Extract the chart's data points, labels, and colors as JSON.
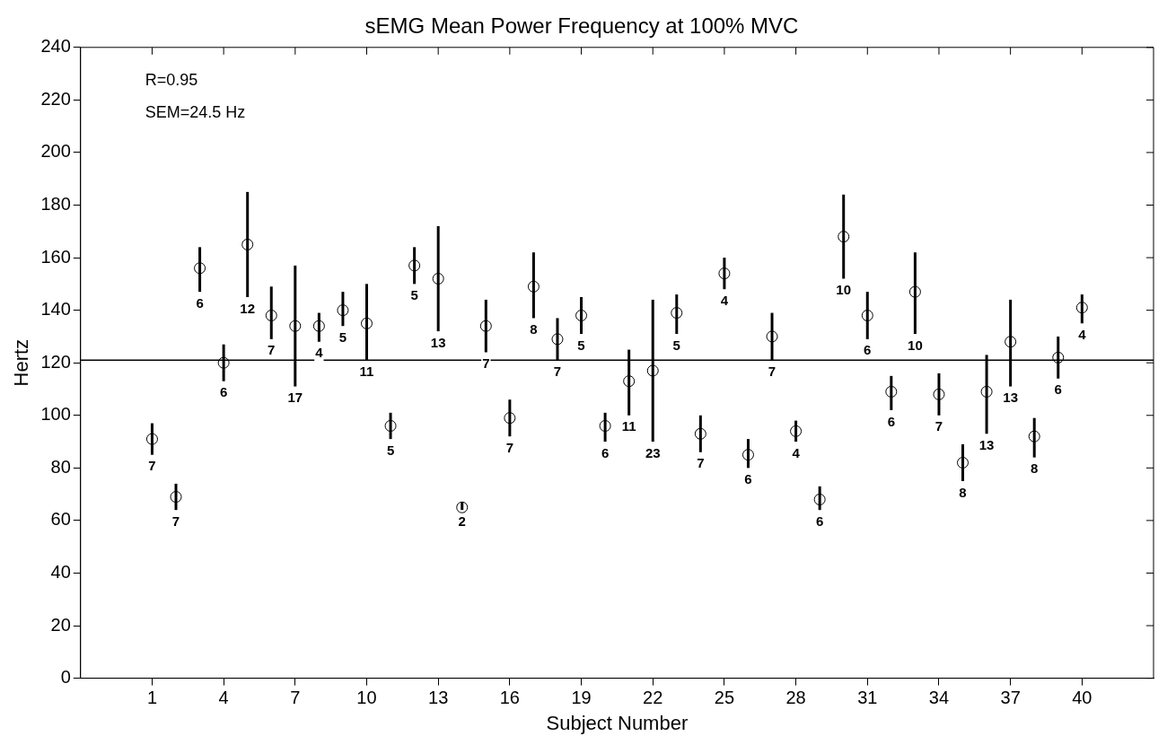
{
  "chart_data": {
    "type": "scatter",
    "title": "sEMG Mean Power Frequency at 100% MVC",
    "xlabel": "Subject Number",
    "ylabel": "Hertz",
    "x": [
      1,
      2,
      3,
      4,
      5,
      6,
      7,
      8,
      9,
      10,
      11,
      12,
      13,
      14,
      15,
      16,
      17,
      18,
      19,
      20,
      21,
      22,
      23,
      24,
      25,
      26,
      27,
      28,
      29,
      30,
      31,
      32,
      33,
      34,
      35,
      36,
      37,
      38,
      39,
      40
    ],
    "values": [
      91,
      69,
      156,
      120,
      165,
      138,
      134,
      134,
      140,
      135,
      96,
      157,
      152,
      65,
      134,
      99,
      149,
      129,
      138,
      96,
      113,
      117,
      139,
      93,
      154,
      85,
      130,
      94,
      68,
      168,
      138,
      109,
      147,
      108,
      82,
      109,
      128,
      92,
      122,
      141
    ],
    "errors": [
      [
        85,
        97
      ],
      [
        64,
        74
      ],
      [
        147,
        164
      ],
      [
        113,
        127
      ],
      [
        145,
        185
      ],
      [
        129,
        149
      ],
      [
        111,
        157
      ],
      [
        128,
        139
      ],
      [
        134,
        147
      ],
      [
        121,
        150
      ],
      [
        91,
        101
      ],
      [
        150,
        164
      ],
      [
        132,
        172
      ],
      [
        64,
        67
      ],
      [
        124,
        144
      ],
      [
        92,
        106
      ],
      [
        137,
        162
      ],
      [
        121,
        137
      ],
      [
        131,
        145
      ],
      [
        90,
        101
      ],
      [
        100,
        125
      ],
      [
        90,
        144
      ],
      [
        131,
        146
      ],
      [
        86,
        100
      ],
      [
        148,
        160
      ],
      [
        80,
        91
      ],
      [
        121,
        139
      ],
      [
        90,
        98
      ],
      [
        64,
        73
      ],
      [
        152,
        184
      ],
      [
        129,
        147
      ],
      [
        102,
        115
      ],
      [
        131,
        162
      ],
      [
        100,
        116
      ],
      [
        75,
        89
      ],
      [
        93,
        123
      ],
      [
        111,
        144
      ],
      [
        84,
        99
      ],
      [
        114,
        130
      ],
      [
        135,
        146
      ]
    ],
    "color": "#000000",
    "marker": "circle",
    "xlim": [
      -2,
      43
    ],
    "xticks": [
      1,
      4,
      7,
      10,
      13,
      16,
      19,
      22,
      25,
      28,
      31,
      34,
      37,
      40
    ],
    "ylim": [
      0,
      240
    ],
    "yticks": [
      0,
      20,
      40,
      60,
      80,
      100,
      120,
      140,
      160,
      180,
      200,
      220,
      240
    ],
    "ref_lines": [
      {
        "axis": "y",
        "value": 121,
        "color": "#000000"
      }
    ],
    "annotations": [
      "R=0.95",
      "SEM=24.5 Hz",
      {
        "text": "7",
        "x": 1,
        "y": 85
      },
      {
        "text": "7",
        "x": 2,
        "y": 64
      },
      {
        "text": "6",
        "x": 3,
        "y": 147
      },
      {
        "text": "6",
        "x": 4,
        "y": 113
      },
      {
        "text": "12",
        "x": 5,
        "y": 145
      },
      {
        "text": "7",
        "x": 6,
        "y": 129
      },
      {
        "text": "17",
        "x": 7,
        "y": 111
      },
      {
        "text": "4",
        "x": 8,
        "y": 128
      },
      {
        "text": "5",
        "x": 9,
        "y": 134
      },
      {
        "text": "11",
        "x": 10,
        "y": 121
      },
      {
        "text": "5",
        "x": 11,
        "y": 91
      },
      {
        "text": "5",
        "x": 12,
        "y": 150
      },
      {
        "text": "13",
        "x": 13,
        "y": 132
      },
      {
        "text": "2",
        "x": 14,
        "y": 64
      },
      {
        "text": "7",
        "x": 15,
        "y": 124
      },
      {
        "text": "7",
        "x": 16,
        "y": 92
      },
      {
        "text": "8",
        "x": 17,
        "y": 137
      },
      {
        "text": "7",
        "x": 18,
        "y": 121
      },
      {
        "text": "5",
        "x": 19,
        "y": 131
      },
      {
        "text": "6",
        "x": 20,
        "y": 90
      },
      {
        "text": "11",
        "x": 21,
        "y": 100
      },
      {
        "text": "23",
        "x": 22,
        "y": 90
      },
      {
        "text": "5",
        "x": 23,
        "y": 131
      },
      {
        "text": "7",
        "x": 24,
        "y": 86
      },
      {
        "text": "4",
        "x": 25,
        "y": 148
      },
      {
        "text": "6",
        "x": 26,
        "y": 80
      },
      {
        "text": "7",
        "x": 27,
        "y": 121
      },
      {
        "text": "4",
        "x": 28,
        "y": 90
      },
      {
        "text": "6",
        "x": 29,
        "y": 64
      },
      {
        "text": "10",
        "x": 30,
        "y": 152
      },
      {
        "text": "6",
        "x": 31,
        "y": 129
      },
      {
        "text": "6",
        "x": 32,
        "y": 102
      },
      {
        "text": "10",
        "x": 33,
        "y": 131
      },
      {
        "text": "7",
        "x": 34,
        "y": 100
      },
      {
        "text": "8",
        "x": 35,
        "y": 75
      },
      {
        "text": "13",
        "x": 36,
        "y": 93
      },
      {
        "text": "13",
        "x": 37,
        "y": 111
      },
      {
        "text": "8",
        "x": 38,
        "y": 84
      },
      {
        "text": "6",
        "x": 39,
        "y": 114
      },
      {
        "text": "4",
        "x": 40,
        "y": 135
      }
    ],
    "grid": false,
    "legend": false
  }
}
